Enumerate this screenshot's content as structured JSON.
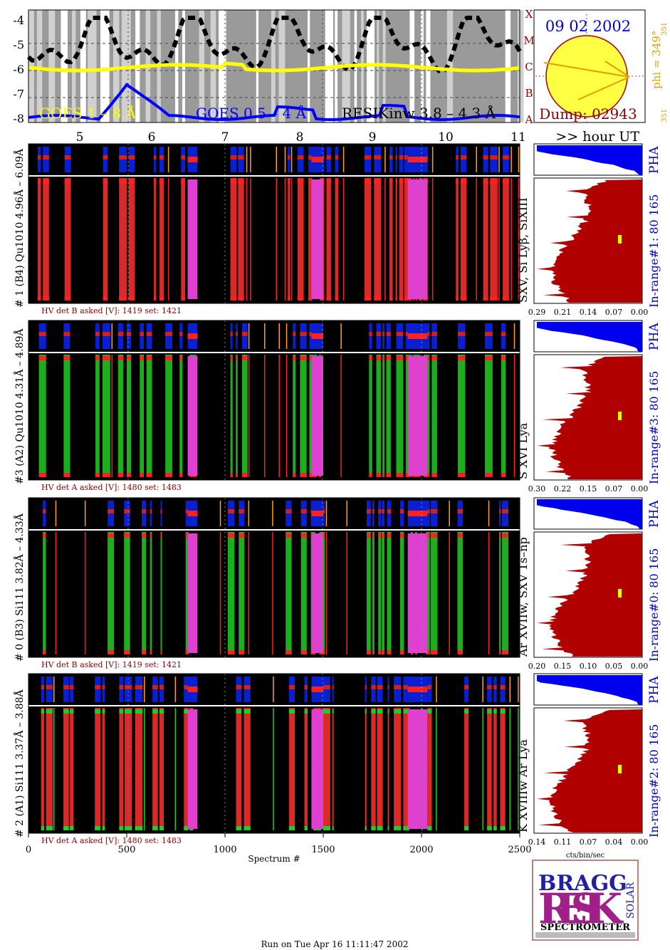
{
  "goes": {
    "yticks": [
      "-4",
      "-5",
      "-6",
      "-7",
      "-8"
    ],
    "class_letters": [
      "X",
      "M",
      "C",
      "B",
      "A"
    ],
    "legend": {
      "goes_long": "GOES 1 – 8 Å",
      "goes_short": "GOES 0.5 – 4 Å",
      "resik": "RESIKinw 3.8 – 4.3 Å"
    },
    "colors": {
      "goes_long": "#ffff00",
      "goes_short": "#0000ff",
      "resik": "#000000",
      "class_letters": "#a00000"
    }
  },
  "sun": {
    "date": "09 02 2002",
    "dump": "Dump: 02943",
    "phi_label": "phi = 349°",
    "phi_small": "351",
    "phi_small2": "351",
    "disk_color": "#ffff44"
  },
  "time_axis": {
    "ticks": [
      "5",
      "6",
      "7",
      "8",
      "9",
      "10",
      "11"
    ],
    "unit_label": ">> hour UT"
  },
  "channels": [
    {
      "left_label": "# 1 (B4) Qu1010 4.96Å – 6.09Å",
      "right_label": "SXV, Si Lyβ, SiXIII",
      "range_label": "In-range#1:   80 165",
      "hv": "HV det B asked [V]:  1419 set:  1421",
      "pha_label": "PHA",
      "spec_ticks": [
        "0.29",
        "0.21",
        "0.14",
        "0.07",
        "0.00"
      ],
      "bg": "#ff3030",
      "extra": "#ff2020"
    },
    {
      "left_label": "#3 (A2) Qu1010  4.31Å – 4.89Å",
      "right_label": "S XVI Lya",
      "range_label": "In-range#3:   80 165",
      "hv": "HV det A asked [V]:  1480 set:  1483",
      "pha_label": "PHA",
      "spec_ticks": [
        "0.30",
        "0.22",
        "0.15",
        "0.07",
        "0.00"
      ],
      "bg": "#22cc22",
      "extra": "#ff2020"
    },
    {
      "left_label": "# 0 (B3) Si111  3.82Å – 4.33Å",
      "right_label": "Ar XVIIw,  SXV 1s–np",
      "range_label": "In-range#0:   80 165",
      "hv": "HV det B asked [V]:  1419 set:  1421",
      "pha_label": "PHA",
      "spec_ticks": [
        "0.20",
        "0.15",
        "0.10",
        "0.05",
        "0.00"
      ],
      "bg": "#22cc22",
      "extra": "#ff2020"
    },
    {
      "left_label": "# 2 (A1) Si111  3.37Å – 3.88Å",
      "right_label": "K XVIIIw  Ar Lya",
      "range_label": "In-range#2:   80 165",
      "hv": "HV det A asked [V]:  1480 set:  1483",
      "pha_label": "PHA",
      "spec_ticks": [
        "0.14",
        "0.11",
        "0.07",
        "0.04",
        "0.00"
      ],
      "bg": "#ff3030",
      "extra": "#22cc22"
    }
  ],
  "spectrum_axis": {
    "ticks": [
      "0",
      "500",
      "1000",
      "1500",
      "2000",
      "2500"
    ],
    "label": "Spectrum #",
    "units": "cts/bin/sec"
  },
  "logo": {
    "top": "BRAGG",
    "big": "RESIK",
    "side": "SOLAR",
    "bottom": "SPECTROMETER"
  },
  "footer": "Run on Tue Apr 16 11:11:47 2002"
}
